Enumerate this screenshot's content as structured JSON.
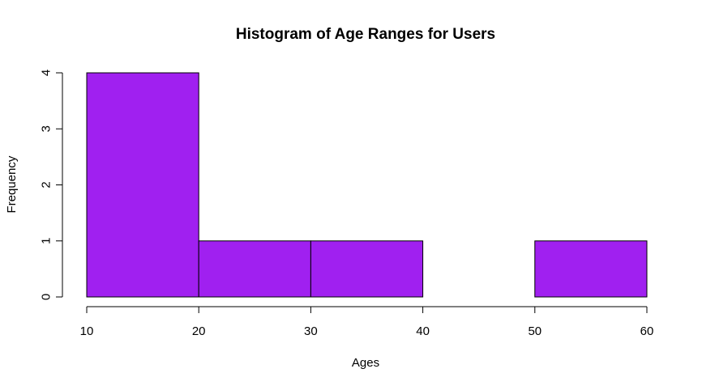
{
  "chart_data": {
    "type": "bar",
    "title": "Histogram of Age Ranges for Users",
    "xlabel": "Ages",
    "ylabel": "Frequency",
    "bins": [
      {
        "from": 10,
        "to": 20,
        "count": 4
      },
      {
        "from": 20,
        "to": 30,
        "count": 1
      },
      {
        "from": 30,
        "to": 40,
        "count": 1
      },
      {
        "from": 40,
        "to": 50,
        "count": 0
      },
      {
        "from": 50,
        "to": 60,
        "count": 1
      }
    ],
    "x_ticks": [
      "10",
      "20",
      "30",
      "40",
      "50",
      "60"
    ],
    "y_ticks": [
      "0",
      "1",
      "2",
      "3",
      "4"
    ],
    "xlim": [
      10,
      60
    ],
    "ylim": [
      0,
      4
    ],
    "grid": false,
    "bar_color": "#A020F0",
    "bar_edge_color": "#000000"
  }
}
